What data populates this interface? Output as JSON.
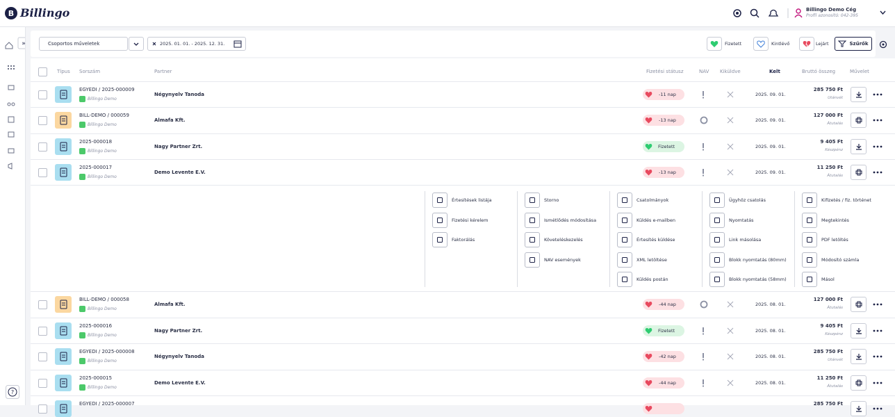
{
  "header": {
    "logo": "Billingo",
    "company": "Billingo Demo Cég",
    "profile": "Profil azonosító: 042-395"
  },
  "toolbar": {
    "bulk_actions": "Csoportos műveletek",
    "date_range": "2025. 01. 01. - 2025. 12. 31.",
    "filters": [
      "Fizetett",
      "Kintlévő",
      "Lejárt"
    ],
    "filter_button": "Szűrők"
  },
  "table": {
    "columns": [
      "Típus",
      "Sorszám",
      "Partner",
      "Fizetési státusz",
      "NAV",
      "Kiküldve",
      "Kelt",
      "Bruttó összeg",
      "Művelet"
    ],
    "rows": [
      {
        "number": "EGYEDI / 2025-000009",
        "issuer": "Billingo Demo",
        "partner": "Négynyelv Tanoda",
        "status": "-11 nap",
        "date": "2025. 09. 01.",
        "amount": "285 750 Ft",
        "payment": "Utánvét"
      },
      {
        "number": "BILL-DEMO / 000059",
        "issuer": "Billingo Demo",
        "partner": "Almafa Kft.",
        "status": "-13 nap",
        "date": "2025. 09. 01.",
        "amount": "127 000 Ft",
        "payment": "Átutalás"
      },
      {
        "number": "2025-000018",
        "issuer": "Billingo Demo",
        "partner": "Nagy Partner Zrt.",
        "status": "Fizetett",
        "date": "2025. 09. 01.",
        "amount": "9 405 Ft",
        "payment": "Készpénz"
      },
      {
        "number": "2025-000017",
        "issuer": "Billingo Demo",
        "partner": "Demo Levente E.V.",
        "status": "-13 nap",
        "date": "2025. 09. 01.",
        "amount": "11 250 Ft",
        "payment": "Átutalás"
      },
      {
        "number": "BILL-DEMO / 000058",
        "issuer": "Billingo Demo",
        "partner": "Almafa Kft.",
        "status": "-44 nap",
        "date": "2025. 08. 01.",
        "amount": "127 000 Ft",
        "payment": "Átutalás"
      },
      {
        "number": "2025-000016",
        "issuer": "Billingo Demo",
        "partner": "Nagy Partner Zrt.",
        "status": "Fizetett",
        "date": "2025. 08. 01.",
        "amount": "9 405 Ft",
        "payment": "Készpénz"
      },
      {
        "number": "EGYEDI / 2025-000008",
        "issuer": "Billingo Demo",
        "partner": "Négynyelv Tanoda",
        "status": "-42 nap",
        "date": "2025. 08. 01.",
        "amount": "285 750 Ft",
        "payment": "Utánvét"
      },
      {
        "number": "2025-000015",
        "issuer": "Billingo Demo",
        "partner": "Demo Levente E.V.",
        "status": "-44 nap",
        "date": "2025. 08. 01.",
        "amount": "11 250 Ft",
        "payment": "Átutalás"
      },
      {
        "number": "EGYEDI / 2025-000007",
        "amount": "285 750 Ft"
      }
    ],
    "menu": [
      [
        "Értesítések listája",
        "Fizetési kérelem",
        "Faktorálás"
      ],
      [
        "Storno",
        "Ismétlődés módosítása",
        "Követeléskezelés",
        "NAV események"
      ],
      [
        "Csatolmányok",
        "Küldés e-mailben",
        "Értesítés küldése",
        "XML letöltése",
        "Küldés postán"
      ],
      [
        "Ügyhöz csatolás",
        "Nyomtatás",
        "Link másolása",
        "Blokk nyomtatás (80mm)",
        "Blokk nyomtatás (58mm)"
      ],
      [
        "Kifizetés / fiz. történet",
        "Megtekintés",
        "PDF letöltés",
        "Módosító számla",
        "Másol"
      ]
    ]
  }
}
